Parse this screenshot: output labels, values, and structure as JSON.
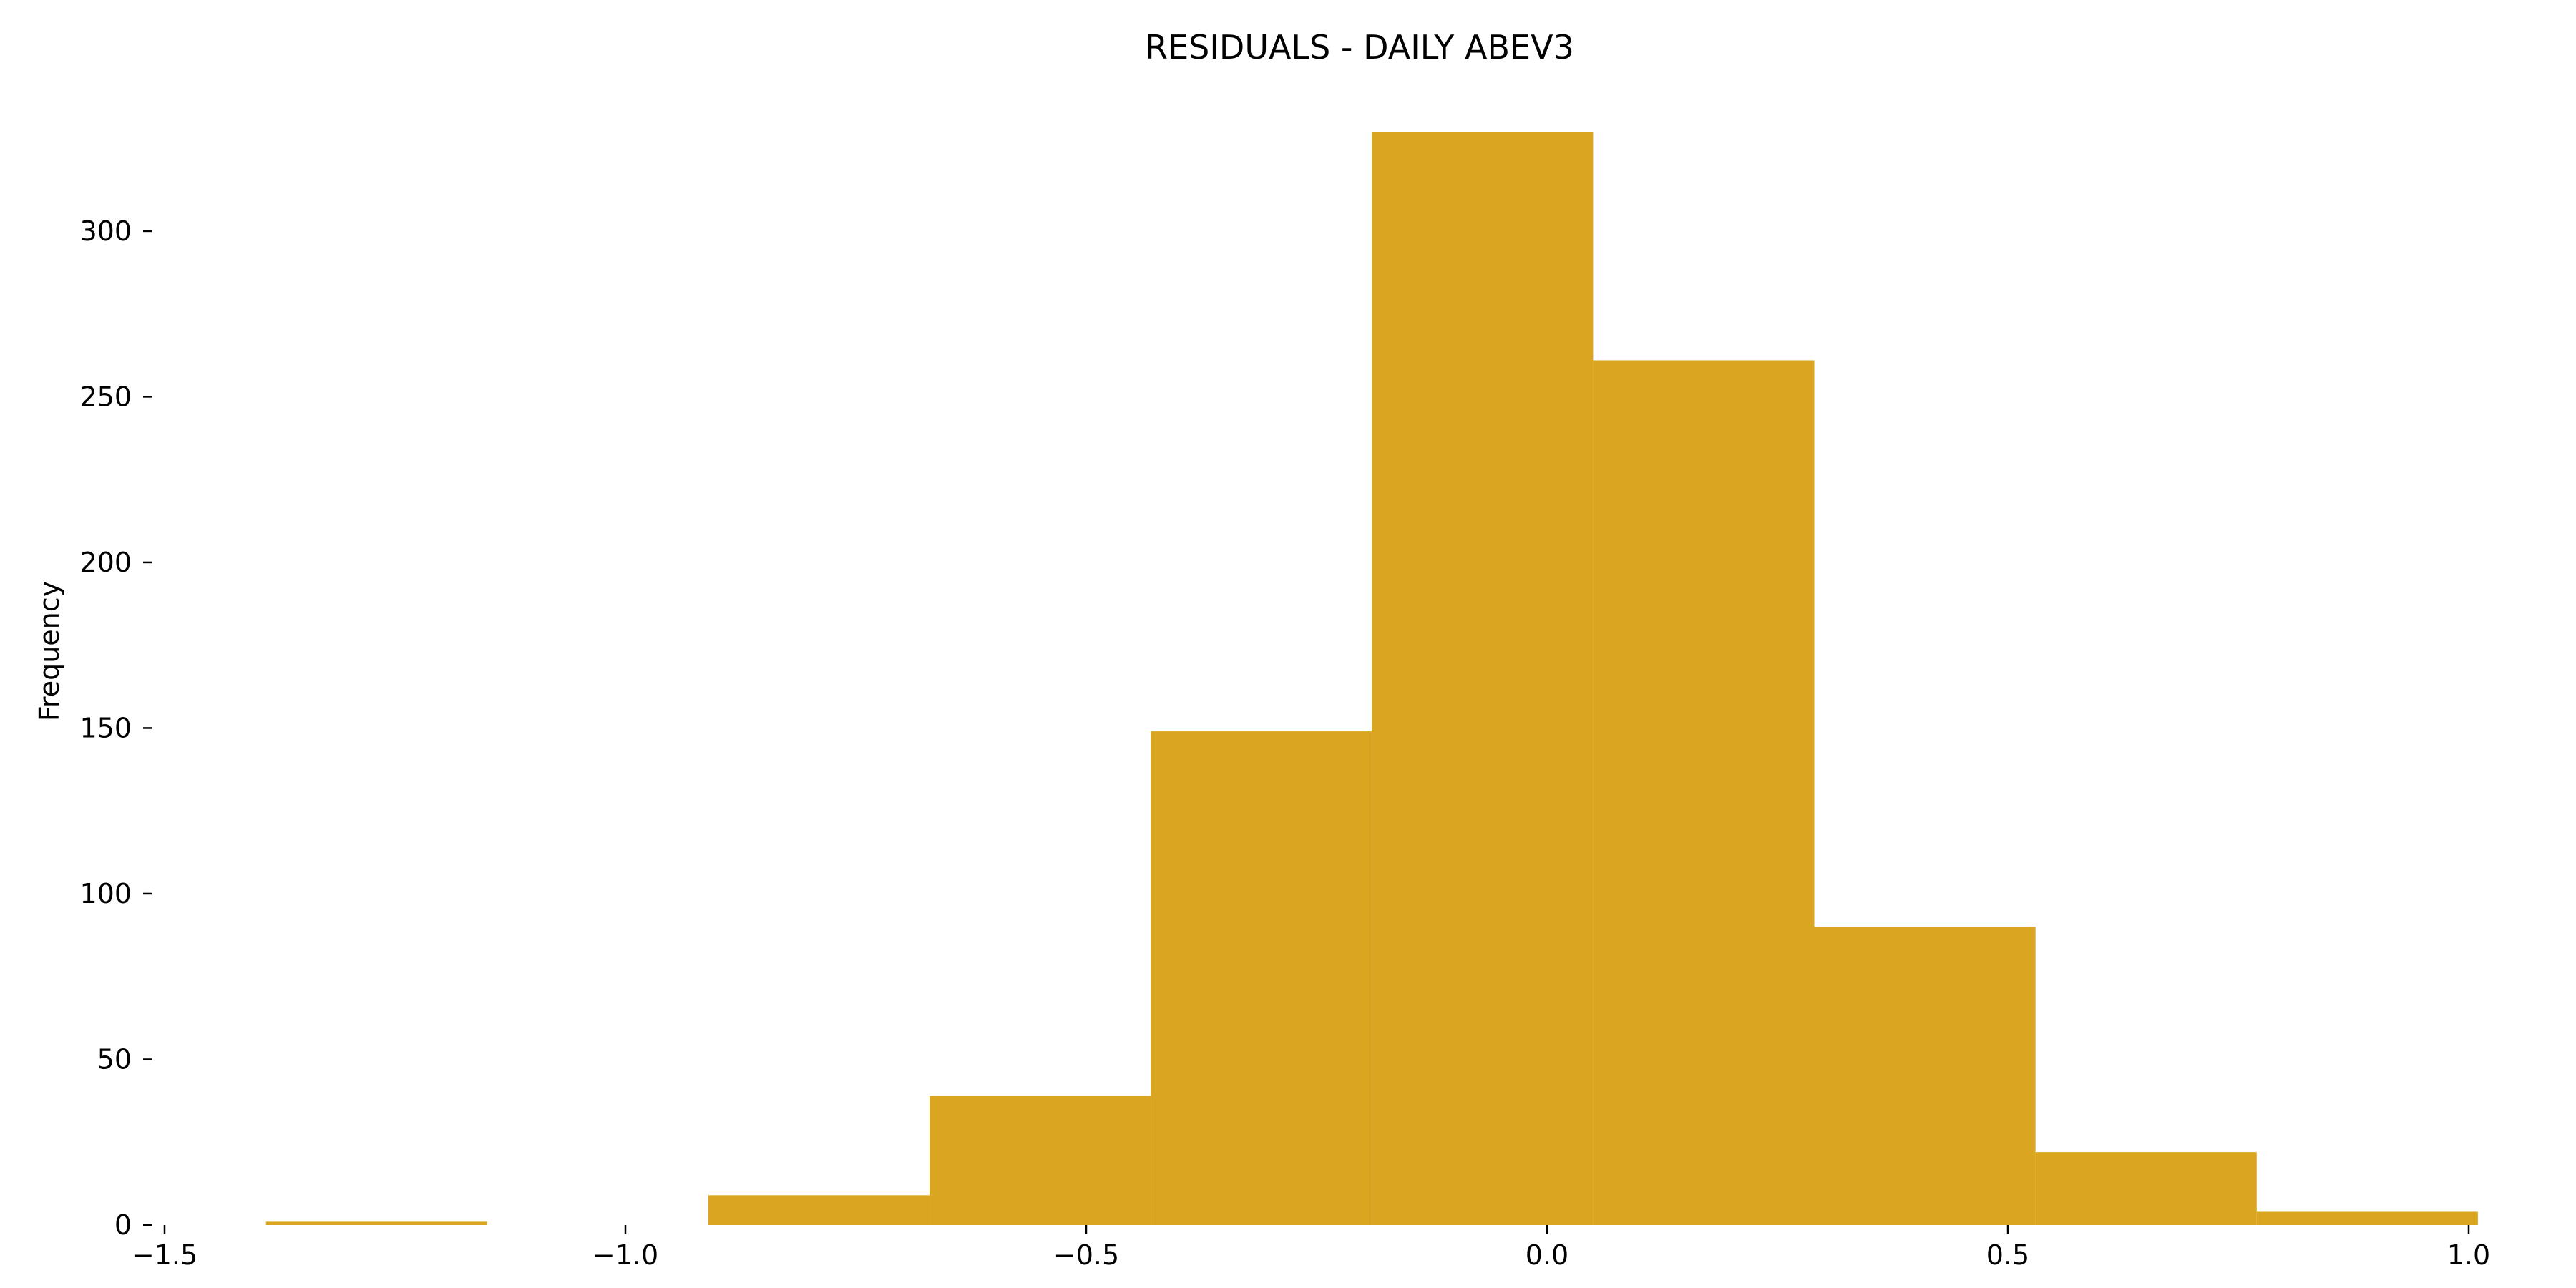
{
  "chart_data": {
    "type": "bar",
    "title": "RESIDUALS - DAILY ABEV3",
    "xlabel": "",
    "ylabel": "Frequency",
    "xlim": [
      -1.5,
      1.0
    ],
    "ylim": [
      0,
      330
    ],
    "x_ticks": [
      -1.5,
      -1.0,
      -0.5,
      0.0,
      0.5,
      1.0
    ],
    "x_tick_labels": [
      "−1.5",
      "−1.0",
      "−0.5",
      "0.0",
      "0.5",
      "1.0"
    ],
    "y_ticks": [
      0,
      50,
      100,
      150,
      200,
      250,
      300
    ],
    "y_tick_labels": [
      "0",
      "50",
      "100",
      "150",
      "200",
      "250",
      "300"
    ],
    "grid": false,
    "bar_color": "#DAA520",
    "bins": [
      {
        "start": -1.39,
        "end": -1.15,
        "value": 1
      },
      {
        "start": -1.15,
        "end": -0.91,
        "value": 0
      },
      {
        "start": -0.91,
        "end": -0.67,
        "value": 9
      },
      {
        "start": -0.67,
        "end": -0.43,
        "value": 39
      },
      {
        "start": -0.43,
        "end": -0.19,
        "value": 149
      },
      {
        "start": -0.19,
        "end": 0.05,
        "value": 330
      },
      {
        "start": 0.05,
        "end": 0.29,
        "value": 261
      },
      {
        "start": 0.29,
        "end": 0.53,
        "value": 90
      },
      {
        "start": 0.53,
        "end": 0.77,
        "value": 22
      },
      {
        "start": 0.77,
        "end": 1.01,
        "value": 4
      }
    ]
  }
}
